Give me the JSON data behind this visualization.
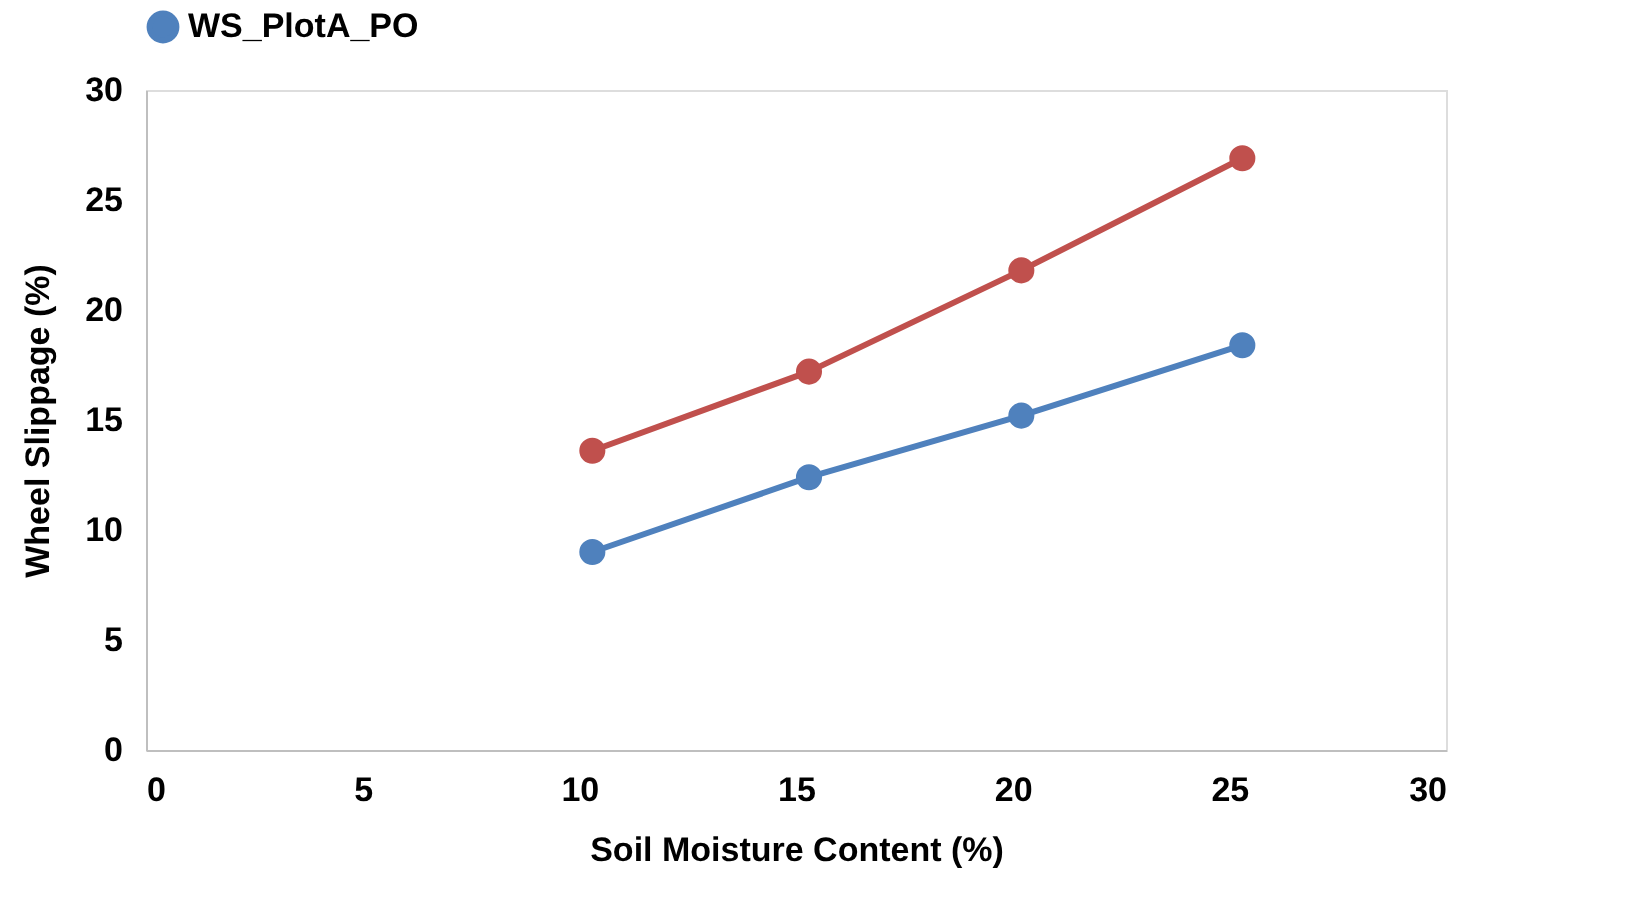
{
  "chart_data": {
    "type": "line",
    "xlabel": "Soil Moisture Content (%)",
    "ylabel": "Wheel Slippage (%)",
    "x": [
      10.3,
      15.3,
      20.2,
      25.3
    ],
    "series": [
      {
        "name": "WS_PlotA_PO",
        "color": "#4f81bd",
        "values": [
          9.0,
          12.4,
          15.2,
          18.4
        ]
      },
      {
        "color": "#c0504d",
        "values": [
          13.6,
          17.2,
          21.8,
          26.9
        ]
      }
    ],
    "xlim": [
      0,
      30
    ],
    "xticks": [
      0,
      5,
      10,
      15,
      20,
      25,
      30
    ],
    "ylim": [
      0,
      30
    ],
    "yticks": [
      0,
      5,
      10,
      15,
      20,
      25,
      30
    ],
    "grid": false,
    "legend": "top",
    "marker": "circle",
    "line_style": "solid"
  }
}
